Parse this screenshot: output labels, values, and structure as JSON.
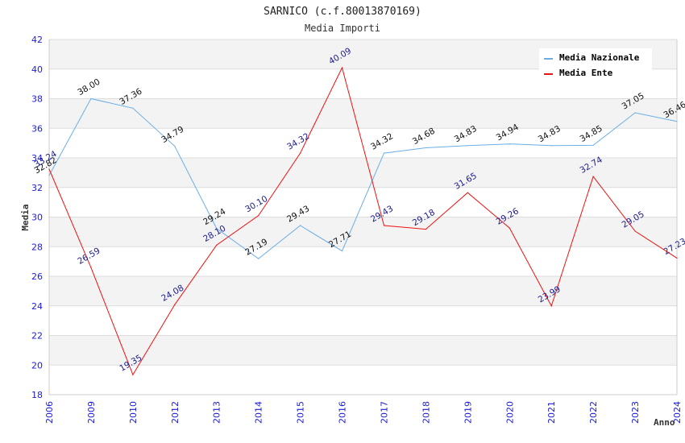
{
  "chart_data": {
    "type": "line",
    "title": "SARNICO (c.f.80013870169)",
    "subtitle": "Media Importi",
    "xlabel": "Anno",
    "ylabel": "Media",
    "ylim": [
      18,
      42
    ],
    "yticks": [
      18,
      20,
      22,
      24,
      26,
      28,
      30,
      32,
      34,
      36,
      38,
      40,
      42
    ],
    "grid": true,
    "legend_position": "top-right",
    "categories": [
      "2006",
      "2009",
      "2010",
      "2012",
      "2013",
      "2014",
      "2015",
      "2016",
      "2017",
      "2018",
      "2019",
      "2020",
      "2021",
      "2022",
      "2023",
      "2024"
    ],
    "series": [
      {
        "name": "Media Nazionale",
        "color": "#6aaee8",
        "label_color": "#111111",
        "values": [
          32.82,
          38.0,
          37.36,
          34.79,
          29.24,
          27.19,
          29.43,
          27.71,
          34.32,
          34.68,
          34.83,
          34.94,
          34.83,
          34.85,
          37.05,
          36.46
        ],
        "labels": [
          "32.82",
          "38.00",
          "37.36",
          "34.79",
          "29.24",
          "27.19",
          "29.43",
          "27.71",
          "34.32",
          "34.68",
          "34.83",
          "34.94",
          "34.83",
          "34.85",
          "37.05",
          "36.46"
        ]
      },
      {
        "name": "Media Ente",
        "color": "#ee1111",
        "label_color": "#1a1a8c",
        "values": [
          33.24,
          26.59,
          19.35,
          24.08,
          28.1,
          30.1,
          34.32,
          40.09,
          29.43,
          29.18,
          31.65,
          29.26,
          23.99,
          32.74,
          29.05,
          27.23
        ],
        "labels": [
          "33.24",
          "26.59",
          "19.35",
          "24.08",
          "28.10",
          "30.10",
          "34.32",
          "40.09",
          "29.43",
          "29.18",
          "31.65",
          "29.26",
          "23.99",
          "32.74",
          "29.05",
          "27.23"
        ]
      }
    ]
  }
}
